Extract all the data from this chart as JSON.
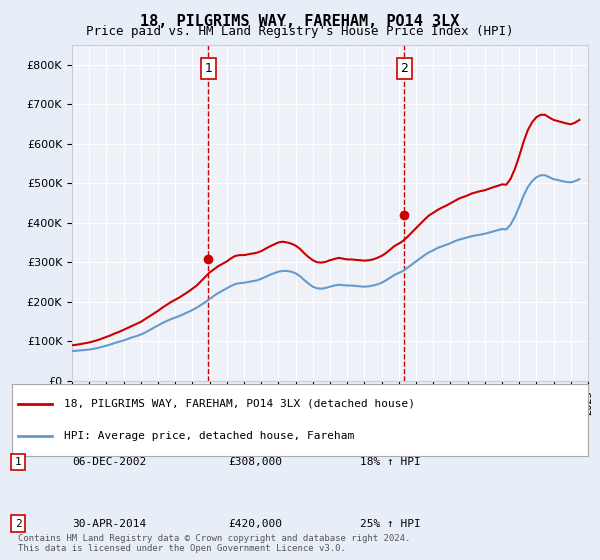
{
  "title": "18, PILGRIMS WAY, FAREHAM, PO14 3LX",
  "subtitle": "Price paid vs. HM Land Registry's House Price Index (HPI)",
  "background_color": "#e8eef8",
  "plot_bg_color": "#eef2f8",
  "ylim": [
    0,
    850000
  ],
  "yticks": [
    0,
    100000,
    200000,
    300000,
    400000,
    500000,
    600000,
    700000,
    800000
  ],
  "ylabel_format": "£{0}K",
  "x_start_year": 1995,
  "x_end_year": 2025,
  "sale1_date": 2002.92,
  "sale1_price": 308000,
  "sale1_label": "1",
  "sale2_date": 2014.33,
  "sale2_price": 420000,
  "sale2_label": "2",
  "legend_line1": "18, PILGRIMS WAY, FAREHAM, PO14 3LX (detached house)",
  "legend_line2": "HPI: Average price, detached house, Fareham",
  "table_rows": [
    {
      "num": "1",
      "date": "06-DEC-2002",
      "price": "£308,000",
      "hpi": "18% ↑ HPI"
    },
    {
      "num": "2",
      "date": "30-APR-2014",
      "price": "£420,000",
      "hpi": "25% ↑ HPI"
    }
  ],
  "footer": "Contains HM Land Registry data © Crown copyright and database right 2024.\nThis data is licensed under the Open Government Licence v3.0.",
  "hpi_color": "#6699cc",
  "price_color": "#cc0000",
  "vline_color": "#cc0000",
  "hpi_data_x": [
    1995.0,
    1995.25,
    1995.5,
    1995.75,
    1996.0,
    1996.25,
    1996.5,
    1996.75,
    1997.0,
    1997.25,
    1997.5,
    1997.75,
    1998.0,
    1998.25,
    1998.5,
    1998.75,
    1999.0,
    1999.25,
    1999.5,
    1999.75,
    2000.0,
    2000.25,
    2000.5,
    2000.75,
    2001.0,
    2001.25,
    2001.5,
    2001.75,
    2002.0,
    2002.25,
    2002.5,
    2002.75,
    2003.0,
    2003.25,
    2003.5,
    2003.75,
    2004.0,
    2004.25,
    2004.5,
    2004.75,
    2005.0,
    2005.25,
    2005.5,
    2005.75,
    2006.0,
    2006.25,
    2006.5,
    2006.75,
    2007.0,
    2007.25,
    2007.5,
    2007.75,
    2008.0,
    2008.25,
    2008.5,
    2008.75,
    2009.0,
    2009.25,
    2009.5,
    2009.75,
    2010.0,
    2010.25,
    2010.5,
    2010.75,
    2011.0,
    2011.25,
    2011.5,
    2011.75,
    2012.0,
    2012.25,
    2012.5,
    2012.75,
    2013.0,
    2013.25,
    2013.5,
    2013.75,
    2014.0,
    2014.25,
    2014.5,
    2014.75,
    2015.0,
    2015.25,
    2015.5,
    2015.75,
    2016.0,
    2016.25,
    2016.5,
    2016.75,
    2017.0,
    2017.25,
    2017.5,
    2017.75,
    2018.0,
    2018.25,
    2018.5,
    2018.75,
    2019.0,
    2019.25,
    2019.5,
    2019.75,
    2020.0,
    2020.25,
    2020.5,
    2020.75,
    2021.0,
    2021.25,
    2021.5,
    2021.75,
    2022.0,
    2022.25,
    2022.5,
    2022.75,
    2023.0,
    2023.25,
    2023.5,
    2023.75,
    2024.0,
    2024.25,
    2024.5
  ],
  "hpi_data_y": [
    75000,
    76000,
    77000,
    78000,
    79000,
    81000,
    83000,
    86000,
    89000,
    92000,
    96000,
    99000,
    102000,
    106000,
    110000,
    113000,
    117000,
    122000,
    128000,
    134000,
    140000,
    146000,
    151000,
    156000,
    160000,
    164000,
    169000,
    174000,
    179000,
    185000,
    192000,
    199000,
    207000,
    215000,
    222000,
    228000,
    234000,
    240000,
    245000,
    247000,
    248000,
    250000,
    252000,
    254000,
    258000,
    263000,
    268000,
    272000,
    276000,
    278000,
    278000,
    276000,
    272000,
    265000,
    255000,
    246000,
    238000,
    234000,
    233000,
    235000,
    238000,
    241000,
    243000,
    242000,
    241000,
    241000,
    240000,
    239000,
    238000,
    239000,
    241000,
    244000,
    248000,
    254000,
    261000,
    268000,
    273000,
    278000,
    286000,
    294000,
    302000,
    310000,
    318000,
    325000,
    330000,
    336000,
    340000,
    344000,
    348000,
    353000,
    357000,
    360000,
    363000,
    366000,
    368000,
    370000,
    372000,
    375000,
    378000,
    381000,
    384000,
    383000,
    395000,
    415000,
    440000,
    468000,
    490000,
    505000,
    515000,
    520000,
    520000,
    515000,
    510000,
    508000,
    505000,
    503000,
    502000,
    505000,
    510000
  ],
  "price_data_x": [
    1995.0,
    1995.25,
    1995.5,
    1995.75,
    1996.0,
    1996.25,
    1996.5,
    1996.75,
    1997.0,
    1997.25,
    1997.5,
    1997.75,
    1998.0,
    1998.25,
    1998.5,
    1998.75,
    1999.0,
    1999.25,
    1999.5,
    1999.75,
    2000.0,
    2000.25,
    2000.5,
    2000.75,
    2001.0,
    2001.25,
    2001.5,
    2001.75,
    2002.0,
    2002.25,
    2002.5,
    2002.75,
    2003.0,
    2003.25,
    2003.5,
    2003.75,
    2004.0,
    2004.25,
    2004.5,
    2004.75,
    2005.0,
    2005.25,
    2005.5,
    2005.75,
    2006.0,
    2006.25,
    2006.5,
    2006.75,
    2007.0,
    2007.25,
    2007.5,
    2007.75,
    2008.0,
    2008.25,
    2008.5,
    2008.75,
    2009.0,
    2009.25,
    2009.5,
    2009.75,
    2010.0,
    2010.25,
    2010.5,
    2010.75,
    2011.0,
    2011.25,
    2011.5,
    2011.75,
    2012.0,
    2012.25,
    2012.5,
    2012.75,
    2013.0,
    2013.25,
    2013.5,
    2013.75,
    2014.0,
    2014.25,
    2014.5,
    2014.75,
    2015.0,
    2015.25,
    2015.5,
    2015.75,
    2016.0,
    2016.25,
    2016.5,
    2016.75,
    2017.0,
    2017.25,
    2017.5,
    2017.75,
    2018.0,
    2018.25,
    2018.5,
    2018.75,
    2019.0,
    2019.25,
    2019.5,
    2019.75,
    2020.0,
    2020.25,
    2020.5,
    2020.75,
    2021.0,
    2021.25,
    2021.5,
    2021.75,
    2022.0,
    2022.25,
    2022.5,
    2022.75,
    2023.0,
    2023.25,
    2023.5,
    2023.75,
    2024.0,
    2024.25,
    2024.5
  ],
  "price_data_y": [
    90000,
    91000,
    93000,
    95000,
    97000,
    100000,
    103000,
    107000,
    111000,
    115000,
    120000,
    124000,
    129000,
    134000,
    139000,
    144000,
    149000,
    156000,
    163000,
    170000,
    177000,
    185000,
    192000,
    199000,
    205000,
    211000,
    218000,
    225000,
    233000,
    241000,
    252000,
    263000,
    274000,
    282000,
    290000,
    296000,
    302000,
    310000,
    316000,
    318000,
    318000,
    320000,
    322000,
    324000,
    328000,
    334000,
    340000,
    345000,
    350000,
    352000,
    350000,
    347000,
    342000,
    334000,
    323000,
    313000,
    305000,
    300000,
    299000,
    301000,
    305000,
    308000,
    311000,
    309000,
    307000,
    307000,
    306000,
    305000,
    304000,
    305000,
    307000,
    311000,
    316000,
    323000,
    332000,
    341000,
    347000,
    354000,
    364000,
    375000,
    386000,
    397000,
    408000,
    418000,
    425000,
    432000,
    438000,
    443000,
    449000,
    455000,
    461000,
    465000,
    469000,
    474000,
    477000,
    480000,
    482000,
    486000,
    490000,
    493000,
    497000,
    496000,
    511000,
    536000,
    568000,
    604000,
    634000,
    654000,
    667000,
    673000,
    673000,
    666000,
    660000,
    657000,
    654000,
    651000,
    649000,
    653000,
    660000
  ]
}
